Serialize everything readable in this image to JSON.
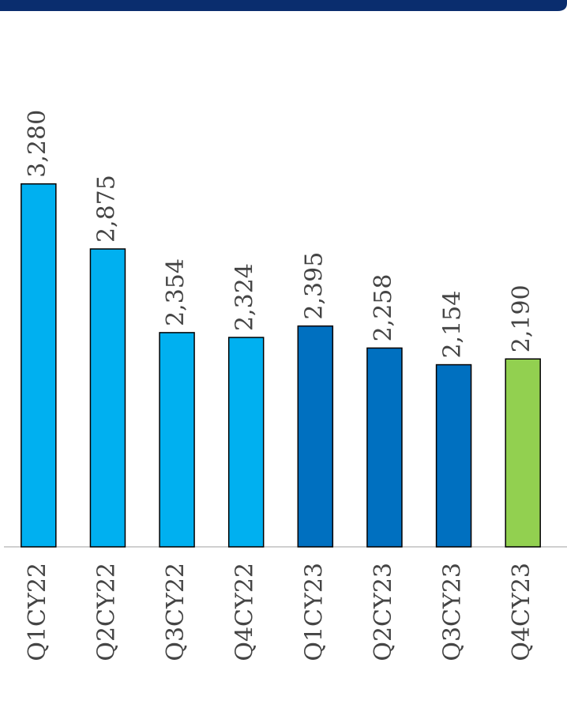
{
  "chart_data": {
    "type": "bar",
    "categories": [
      "Q1CY22",
      "Q2CY22",
      "Q3CY22",
      "Q4CY22",
      "Q1CY23",
      "Q2CY23",
      "Q3CY23",
      "Q4CY23"
    ],
    "values": [
      3280,
      2875,
      2354,
      2324,
      2395,
      2258,
      2154,
      2190
    ],
    "value_labels": [
      "3,280",
      "2,875",
      "2,354",
      "2,324",
      "2,395",
      "2,258",
      "2,154",
      "2,190"
    ],
    "colors": [
      "#00b0f0",
      "#00b0f0",
      "#00b0f0",
      "#00b0f0",
      "#0070c0",
      "#0070c0",
      "#0070c0",
      "#92d050"
    ],
    "ylim": [
      1020,
      4130
    ]
  }
}
